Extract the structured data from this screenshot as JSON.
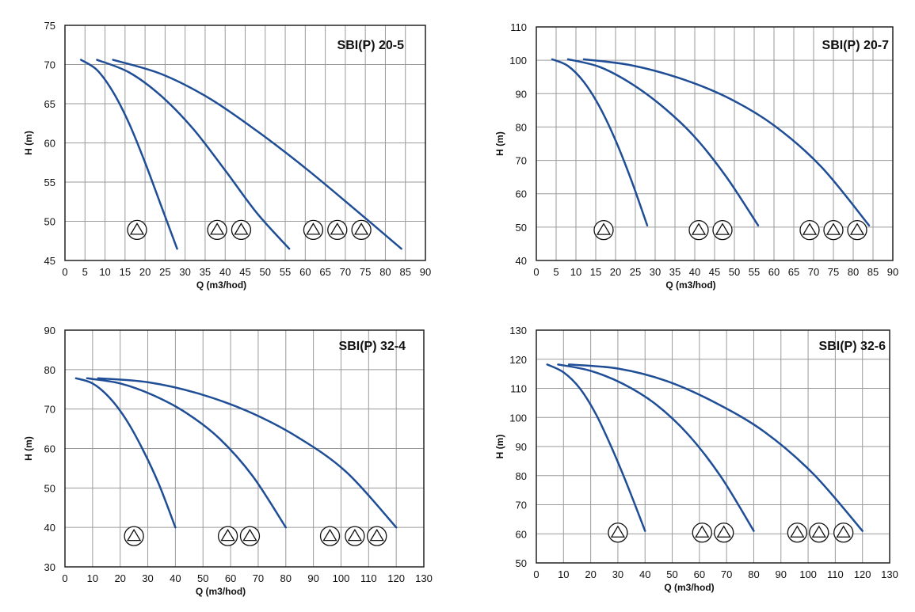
{
  "colors": {
    "curve": "#1f4e96",
    "grid": "#9a9a9a",
    "frame": "#222222",
    "symbol": "#111111"
  },
  "chart_data": [
    {
      "type": "line",
      "title": "SBI(P) 20-5",
      "xlabel": "Q (m3/hod)",
      "ylabel": "H (m)",
      "xlim": [
        0,
        90
      ],
      "ylim": [
        45,
        75
      ],
      "x_ticks": [
        0,
        5,
        10,
        15,
        20,
        25,
        30,
        35,
        40,
        45,
        50,
        55,
        60,
        65,
        70,
        75,
        80,
        85,
        90
      ],
      "y_ticks": [
        45,
        50,
        55,
        60,
        65,
        70,
        75
      ],
      "grid": true,
      "series": [
        {
          "x": [
            4,
            8,
            12,
            16,
            20,
            24,
            28
          ],
          "y": [
            70.6,
            69.3,
            66.5,
            62.5,
            57.5,
            52.0,
            46.5
          ],
          "symbols": 1,
          "symbol_x": [
            18
          ]
        },
        {
          "x": [
            8,
            16,
            24,
            32,
            40,
            48,
            56
          ],
          "y": [
            70.6,
            69.0,
            66.0,
            61.8,
            56.5,
            51.0,
            46.5
          ],
          "symbols": 2,
          "symbol_x": [
            38,
            44
          ]
        },
        {
          "x": [
            12,
            24,
            36,
            48,
            60,
            72,
            84
          ],
          "y": [
            70.6,
            68.8,
            65.7,
            61.5,
            56.8,
            51.7,
            46.5
          ],
          "symbols": 3,
          "symbol_x": [
            62,
            68,
            74
          ]
        }
      ]
    },
    {
      "type": "line",
      "title": "SBI(P) 20-7",
      "xlabel": "Q (m3/hod)",
      "ylabel": "H (m)",
      "xlim": [
        0,
        90
      ],
      "ylim": [
        40,
        110
      ],
      "x_ticks": [
        0,
        5,
        10,
        15,
        20,
        25,
        30,
        35,
        40,
        45,
        50,
        55,
        60,
        65,
        70,
        75,
        80,
        85,
        90
      ],
      "y_ticks": [
        40,
        50,
        60,
        70,
        80,
        90,
        100,
        110
      ],
      "grid": true,
      "series": [
        {
          "x": [
            4,
            8,
            12,
            16,
            20,
            24,
            28
          ],
          "y": [
            100.3,
            98.3,
            93.5,
            86.0,
            76.0,
            64.0,
            50.5
          ],
          "symbols": 1,
          "symbol_x": [
            17
          ]
        },
        {
          "x": [
            8,
            16,
            24,
            32,
            40,
            48,
            56
          ],
          "y": [
            100.3,
            98.0,
            93.0,
            86.0,
            77.0,
            65.0,
            50.5
          ],
          "symbols": 2,
          "symbol_x": [
            41,
            47
          ]
        },
        {
          "x": [
            12,
            24,
            36,
            48,
            60,
            72,
            84
          ],
          "y": [
            100.3,
            98.5,
            94.7,
            89.0,
            80.5,
            68.0,
            50.5
          ],
          "symbols": 3,
          "symbol_x": [
            69,
            75,
            81
          ]
        }
      ]
    },
    {
      "type": "line",
      "title": "SBI(P) 32-4",
      "xlabel": "Q (m3/hod)",
      "ylabel": "H (m)",
      "xlim": [
        0,
        130
      ],
      "ylim": [
        30,
        90
      ],
      "x_ticks": [
        0,
        10,
        20,
        30,
        40,
        50,
        60,
        70,
        80,
        90,
        100,
        110,
        120,
        130
      ],
      "y_ticks": [
        30,
        40,
        50,
        60,
        70,
        80,
        90
      ],
      "grid": true,
      "series": [
        {
          "x": [
            4,
            10,
            16,
            22,
            28,
            34,
            40
          ],
          "y": [
            77.8,
            76.5,
            73.0,
            67.5,
            60.0,
            51.0,
            40.0
          ],
          "symbols": 1,
          "symbol_x": [
            25
          ]
        },
        {
          "x": [
            8,
            20,
            32,
            44,
            56,
            68,
            80
          ],
          "y": [
            77.8,
            76.5,
            73.5,
            69.0,
            62.5,
            53.0,
            40.0
          ],
          "symbols": 2,
          "symbol_x": [
            59,
            67
          ]
        },
        {
          "x": [
            12,
            30,
            48,
            66,
            84,
            102,
            120
          ],
          "y": [
            77.8,
            76.8,
            74.0,
            69.5,
            63.0,
            54.0,
            40.0
          ],
          "symbols": 3,
          "symbol_x": [
            96,
            105,
            113
          ]
        }
      ]
    },
    {
      "type": "line",
      "title": "SBI(P) 32-6",
      "xlabel": "Q (m3/hod)",
      "ylabel": "H (m)",
      "xlim": [
        0,
        130
      ],
      "ylim": [
        50,
        130
      ],
      "x_ticks": [
        0,
        10,
        20,
        30,
        40,
        50,
        60,
        70,
        80,
        90,
        100,
        110,
        120,
        130
      ],
      "y_ticks": [
        50,
        60,
        70,
        80,
        90,
        100,
        110,
        120,
        130
      ],
      "grid": true,
      "series": [
        {
          "x": [
            4,
            10,
            16,
            22,
            28,
            34,
            40
          ],
          "y": [
            118.2,
            115.5,
            110.0,
            101.0,
            89.0,
            75.5,
            61.0
          ],
          "symbols": 1,
          "symbol_x": [
            30
          ]
        },
        {
          "x": [
            8,
            20,
            32,
            44,
            56,
            68,
            80
          ],
          "y": [
            118.2,
            116.0,
            111.5,
            104.5,
            94.0,
            79.5,
            61.0
          ],
          "symbols": 2,
          "symbol_x": [
            61,
            69
          ]
        },
        {
          "x": [
            12,
            30,
            48,
            66,
            84,
            102,
            120
          ],
          "y": [
            118.2,
            116.8,
            112.5,
            105.0,
            95.0,
            80.5,
            61.0
          ],
          "symbols": 3,
          "symbol_x": [
            96,
            104,
            113
          ]
        }
      ]
    }
  ]
}
